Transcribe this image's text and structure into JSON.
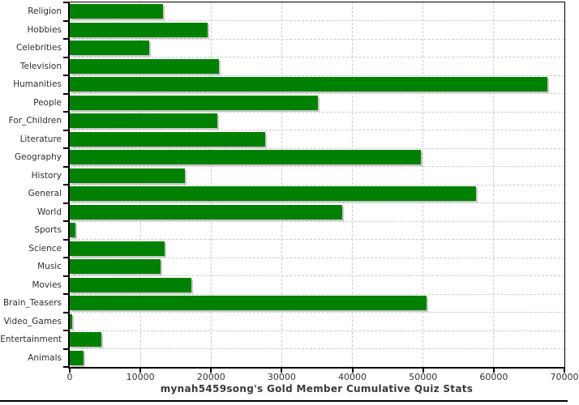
{
  "chart_data": {
    "type": "bar",
    "orientation": "horizontal",
    "title": "mynah5459song's Gold Member Cumulative Quiz Stats",
    "categories": [
      "Religion",
      "Hobbies",
      "Celebrities",
      "Television",
      "Humanities",
      "People",
      "For_Children",
      "Literature",
      "Geography",
      "History",
      "General",
      "World",
      "Sports",
      "Science",
      "Music",
      "Movies",
      "Brain_Teasers",
      "Video_Games",
      "Entertainment",
      "Animals"
    ],
    "values": [
      13200,
      19500,
      11250,
      21100,
      67600,
      35100,
      20900,
      27700,
      49700,
      16300,
      57500,
      38600,
      850,
      13400,
      12800,
      17250,
      50500,
      300,
      4500,
      2000
    ],
    "xlim": [
      0,
      70000
    ],
    "x_ticks": [
      0,
      10000,
      20000,
      30000,
      40000,
      50000,
      60000,
      70000
    ],
    "x_tick_labels": [
      "0",
      "10000",
      "20000",
      "30000",
      "40000",
      "50000",
      "60000",
      "70000"
    ],
    "grid": "dashed",
    "legend": "none",
    "colors": {
      "bar": "#008000",
      "bar_shadow": "#c8c8c8",
      "grid": "#cccccc",
      "axis": "#000000",
      "tick_label": "#333333",
      "title": "#3a3a3a"
    }
  }
}
